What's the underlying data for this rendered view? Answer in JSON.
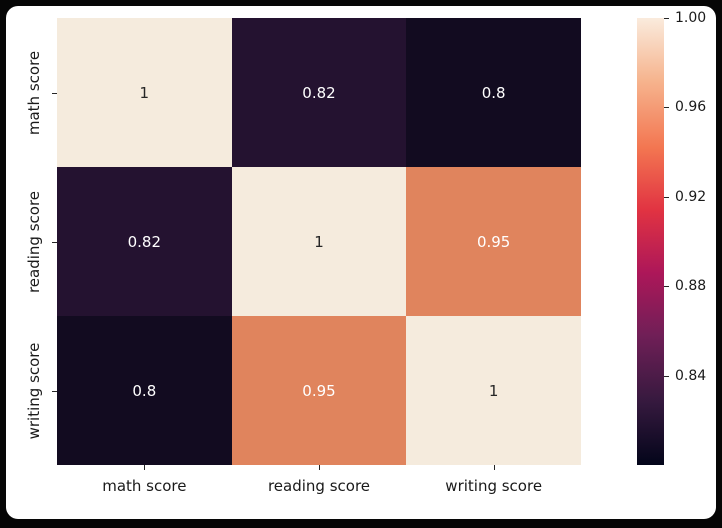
{
  "figure": {
    "outer_bg": "#060606",
    "plot_bg": "#ffffff",
    "text_color": "#1a1a1a"
  },
  "chart_data": {
    "type": "heatmap",
    "title": "",
    "xlabel": "",
    "ylabel": "",
    "categories": [
      "math score",
      "reading score",
      "writing score"
    ],
    "x_tick_labels": [
      "math score",
      "reading score",
      "writing score"
    ],
    "y_tick_labels": [
      "math score",
      "reading score",
      "writing score"
    ],
    "matrix": [
      [
        1.0,
        0.82,
        0.8
      ],
      [
        0.82,
        1.0,
        0.95
      ],
      [
        0.8,
        0.95,
        1.0
      ]
    ],
    "cell_labels": [
      [
        "1",
        "0.82",
        "0.8"
      ],
      [
        "0.82",
        "1",
        "0.95"
      ],
      [
        "0.8",
        "0.95",
        "1"
      ]
    ],
    "cell_colors": [
      [
        "#f5ebdd",
        "#241230",
        "#120b20"
      ],
      [
        "#241230",
        "#f5ebdd",
        "#e0845d"
      ],
      [
        "#120b20",
        "#e0845d",
        "#f5ebdd"
      ]
    ],
    "cell_text_colors": [
      [
        "#262626",
        "#ffffff",
        "#ffffff"
      ],
      [
        "#ffffff",
        "#262626",
        "#ffffff"
      ],
      [
        "#ffffff",
        "#ffffff",
        "#262626"
      ]
    ],
    "colorbar": {
      "vmin": 0.8,
      "vmax": 1.0,
      "tick_labels": [
        "1.00",
        "0.96",
        "0.92",
        "0.88",
        "0.84"
      ],
      "tick_positions": [
        0,
        0.2,
        0.4,
        0.6,
        0.8
      ],
      "gradient_stops": [
        {
          "pos": 0,
          "color": "#faebdd"
        },
        {
          "pos": 14,
          "color": "#f6b48e"
        },
        {
          "pos": 29,
          "color": "#f37651"
        },
        {
          "pos": 43,
          "color": "#e13342"
        },
        {
          "pos": 57,
          "color": "#ad1759"
        },
        {
          "pos": 71,
          "color": "#701f57"
        },
        {
          "pos": 86,
          "color": "#35193e"
        },
        {
          "pos": 100,
          "color": "#03051a"
        }
      ]
    }
  }
}
